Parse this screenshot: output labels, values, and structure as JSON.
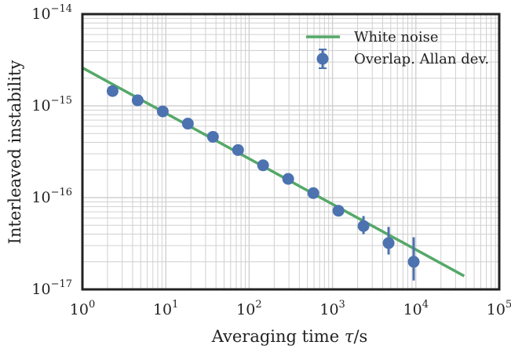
{
  "chart_data": {
    "type": "scatter",
    "xscale": "log",
    "yscale": "log",
    "xlim": [
      1,
      100000
    ],
    "ylim": [
      1e-17,
      1e-14
    ],
    "grid": true,
    "grid_minor": true,
    "legend_position": "top-right",
    "xlabel": {
      "prefix": "Averaging time ",
      "symbol": "τ",
      "suffix": "/s"
    },
    "ylabel": "Interleaved instability",
    "x_ticks": [
      {
        "base": "10",
        "exp": "0",
        "value": 1
      },
      {
        "base": "10",
        "exp": "1",
        "value": 10
      },
      {
        "base": "10",
        "exp": "2",
        "value": 100
      },
      {
        "base": "10",
        "exp": "3",
        "value": 1000
      },
      {
        "base": "10",
        "exp": "4",
        "value": 10000
      },
      {
        "base": "10",
        "exp": "5",
        "value": 100000
      }
    ],
    "y_ticks": [
      {
        "base": "10",
        "exp": "−17",
        "value": 1e-17
      },
      {
        "base": "10",
        "exp": "−16",
        "value": 1e-16
      },
      {
        "base": "10",
        "exp": "−15",
        "value": 1e-15
      },
      {
        "base": "10",
        "exp": "−14",
        "value": 1e-14
      }
    ],
    "series": [
      {
        "name": "White noise",
        "kind": "line",
        "color": "#55a868",
        "x": [
          1,
          38000
        ],
        "y": [
          2.6e-15,
          1.4e-17
        ]
      },
      {
        "name": "Overlap. Allan dev.",
        "kind": "errorbar",
        "color": "#4c72b0",
        "points": [
          {
            "x": 2.3,
            "y": 1.45e-15,
            "err_low": 0,
            "err_high": 0
          },
          {
            "x": 4.6,
            "y": 1.15e-15,
            "err_low": 0,
            "err_high": 0
          },
          {
            "x": 9.2,
            "y": 8.7e-16,
            "err_low": 0,
            "err_high": 0
          },
          {
            "x": 18.4,
            "y": 6.4e-16,
            "err_low": 0,
            "err_high": 0
          },
          {
            "x": 36.8,
            "y": 4.6e-16,
            "err_low": 0,
            "err_high": 0
          },
          {
            "x": 73.6,
            "y": 3.3e-16,
            "err_low": 0,
            "err_high": 0
          },
          {
            "x": 147,
            "y": 2.25e-16,
            "err_low": 0,
            "err_high": 0
          },
          {
            "x": 294,
            "y": 1.6e-16,
            "err_low": 0,
            "err_high": 0
          },
          {
            "x": 589,
            "y": 1.12e-16,
            "err_low": 0,
            "err_high": 0
          },
          {
            "x": 1178,
            "y": 7.2e-17,
            "err_low": 6.4e-17,
            "err_high": 8e-17
          },
          {
            "x": 2355,
            "y": 4.9e-17,
            "err_low": 4e-17,
            "err_high": 6.3e-17
          },
          {
            "x": 4710,
            "y": 3.2e-17,
            "err_low": 2.4e-17,
            "err_high": 4.8e-17
          },
          {
            "x": 9420,
            "y": 2e-17,
            "err_low": 1.25e-17,
            "err_high": 3.7e-17
          }
        ]
      }
    ]
  }
}
